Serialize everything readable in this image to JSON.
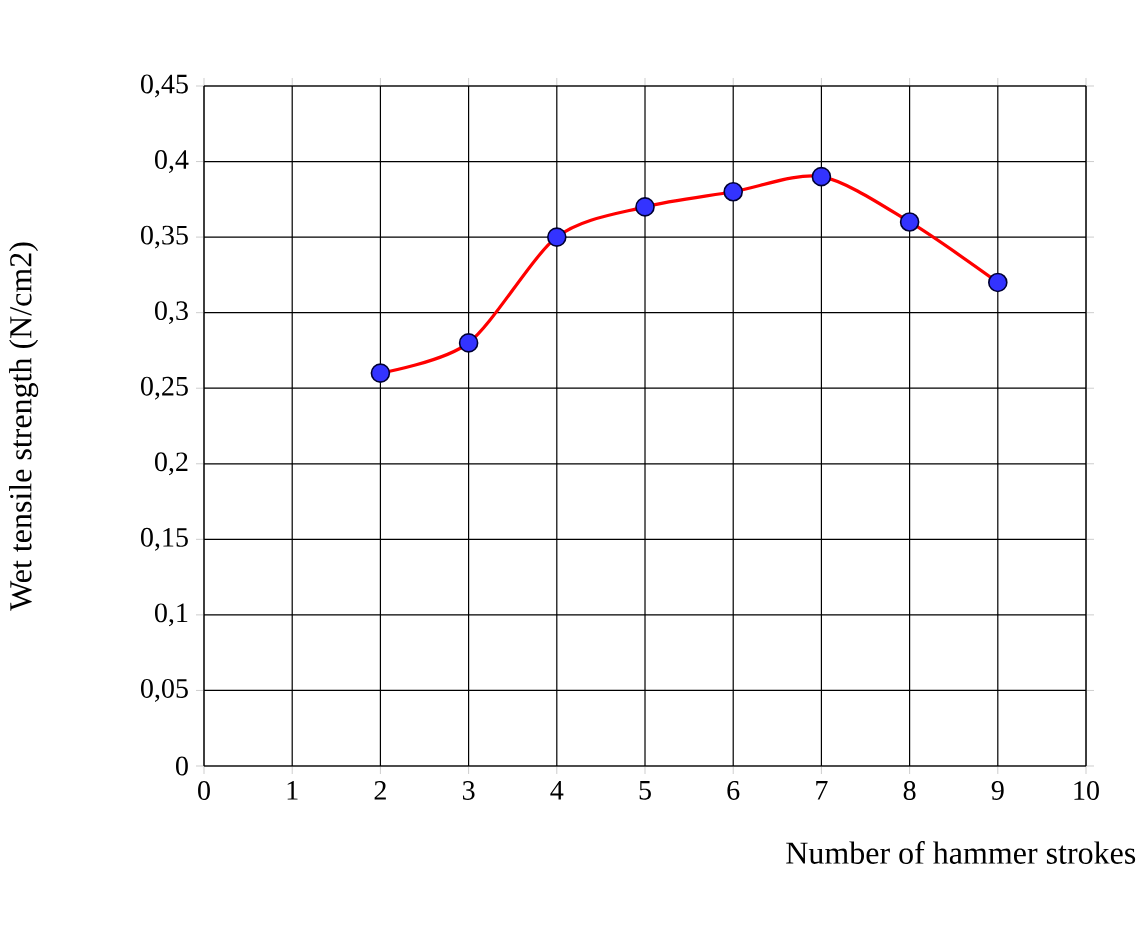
{
  "chart_data": {
    "type": "line",
    "xlabel": "Number of hammer strokes",
    "ylabel": "Wet tensile strength  (N/cm2)",
    "x": [
      2,
      3,
      4,
      5,
      6,
      7,
      8,
      9
    ],
    "series": [
      {
        "color": "#ff0000",
        "values": [
          0.26,
          0.28,
          0.35,
          0.37,
          0.38,
          0.39,
          0.36,
          0.32
        ]
      }
    ],
    "xlim": [
      0,
      10
    ],
    "xticks": [
      0,
      1,
      2,
      3,
      4,
      5,
      6,
      7,
      8,
      9,
      10
    ],
    "ylim": [
      0,
      0.45
    ],
    "yticks": [
      0,
      {
        "value": 0.05,
        "label": "0,05"
      },
      {
        "value": 0.1,
        "label": "0,1"
      },
      {
        "value": 0.15,
        "label": "0,15"
      },
      {
        "value": 0.2,
        "label": "0,2"
      },
      {
        "value": 0.25,
        "label": "0,25"
      },
      {
        "value": 0.3,
        "label": "0,3"
      },
      {
        "value": 0.35,
        "label": "0,35"
      },
      {
        "value": 0.4,
        "label": "0,4"
      },
      {
        "value": 0.45,
        "label": "0,45"
      }
    ],
    "grid": true,
    "marker": "circle",
    "line_style": "solid"
  }
}
